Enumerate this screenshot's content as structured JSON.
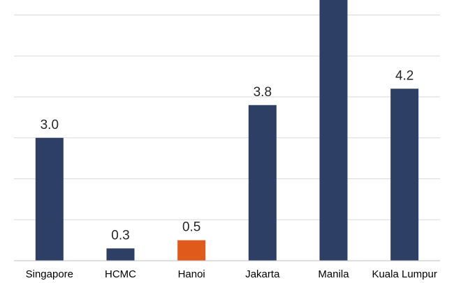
{
  "chart_data": {
    "type": "bar",
    "categories": [
      "Singapore",
      "HCMC",
      "Hanoi",
      "Jakarta",
      "Manila",
      "Kuala Lumpur"
    ],
    "values": [
      3.0,
      0.3,
      0.5,
      3.8,
      6.5,
      4.2
    ],
    "data_labels": [
      "3.0",
      "0.3",
      "0.5",
      "3.8",
      "",
      "4.2"
    ],
    "colors": [
      "#2e3f66",
      "#2e3f66",
      "#e05a1b",
      "#2e3f66",
      "#2e3f66",
      "#2e3f66"
    ],
    "ylim": [
      0,
      6.4
    ],
    "grid": true,
    "title": "",
    "xlabel": "",
    "ylabel": ""
  }
}
